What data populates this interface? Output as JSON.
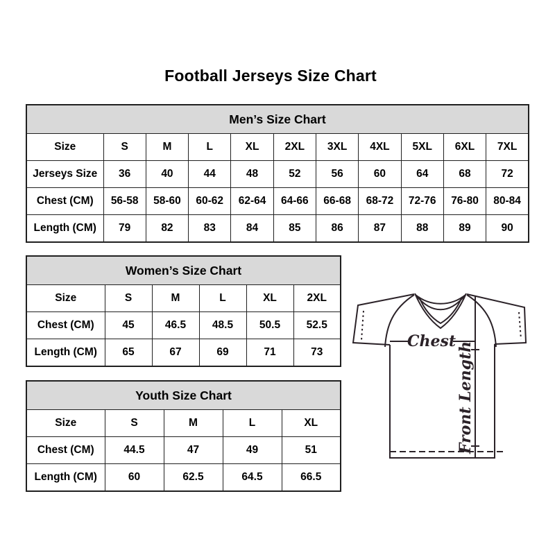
{
  "title": "Football Jerseys Size Chart",
  "tables": {
    "men": {
      "header": "Men’s Size Chart",
      "rows": [
        [
          "Size",
          "S",
          "M",
          "L",
          "XL",
          "2XL",
          "3XL",
          "4XL",
          "5XL",
          "6XL",
          "7XL"
        ],
        [
          "Jerseys Size",
          "36",
          "40",
          "44",
          "48",
          "52",
          "56",
          "60",
          "64",
          "68",
          "72"
        ],
        [
          "Chest (CM)",
          "56-58",
          "58-60",
          "60-62",
          "62-64",
          "64-66",
          "66-68",
          "68-72",
          "72-76",
          "76-80",
          "80-84"
        ],
        [
          "Length (CM)",
          "79",
          "82",
          "83",
          "84",
          "85",
          "86",
          "87",
          "88",
          "89",
          "90"
        ]
      ]
    },
    "women": {
      "header": "Women’s Size Chart",
      "rows": [
        [
          "Size",
          "S",
          "M",
          "L",
          "XL",
          "2XL"
        ],
        [
          "Chest (CM)",
          "45",
          "46.5",
          "48.5",
          "50.5",
          "52.5"
        ],
        [
          "Length (CM)",
          "65",
          "67",
          "69",
          "71",
          "73"
        ]
      ]
    },
    "youth": {
      "header": "Youth Size Chart",
      "rows": [
        [
          "Size",
          "S",
          "M",
          "L",
          "XL"
        ],
        [
          "Chest (CM)",
          "44.5",
          "47",
          "49",
          "51"
        ],
        [
          "Length (CM)",
          "60",
          "62.5",
          "64.5",
          "66.5"
        ]
      ]
    }
  },
  "diagram": {
    "chest_label": "Chest",
    "front_length_label": "Front Length"
  },
  "colors": {
    "background": "#ffffff",
    "table_header_bg": "#d9d9d9",
    "table_border": "#1f1f1f",
    "text": "#000000",
    "diagram_stroke": "#2b2228"
  }
}
